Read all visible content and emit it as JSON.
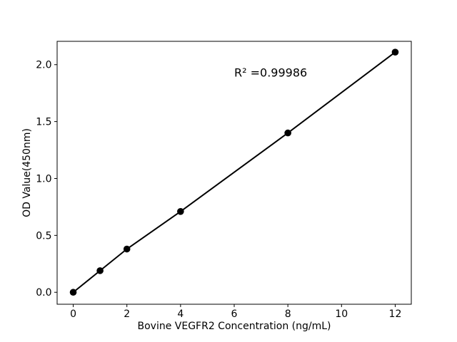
{
  "chart_data": {
    "type": "line",
    "title": "",
    "xlabel": "Bovine VEGFR2 Concentration (ng/mL)",
    "ylabel": "OD Value(450nm)",
    "x": [
      0,
      1,
      2,
      4,
      8,
      12
    ],
    "y": [
      0.0,
      0.19,
      0.38,
      0.71,
      1.4,
      2.11
    ],
    "x_ticks": [
      0,
      2,
      4,
      6,
      8,
      10,
      12
    ],
    "y_ticks": [
      0.0,
      0.5,
      1.0,
      1.5,
      2.0
    ],
    "xlim": [
      -0.6,
      12.6
    ],
    "ylim": [
      -0.105,
      2.205
    ],
    "grid": false,
    "legend": "none",
    "marker": "circle",
    "line_color": "#000000",
    "marker_color": "#000000",
    "background_color": "#ffffff",
    "annotation": {
      "text": "R² =0.99986",
      "x": 6.0,
      "y": 1.93
    }
  }
}
